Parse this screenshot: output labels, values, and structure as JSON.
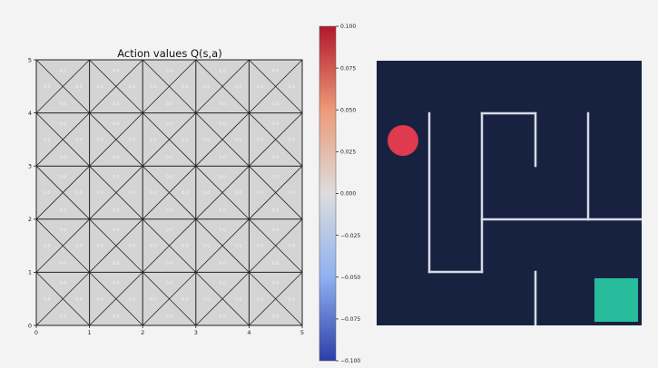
{
  "qplot": {
    "title": "Action values Q(s,a)",
    "grid_size": 5,
    "x_ticks": [
      "0",
      "1",
      "2",
      "3",
      "4",
      "5"
    ],
    "y_ticks": [
      "0",
      "1",
      "2",
      "3",
      "4",
      "5"
    ],
    "cell_value_text": "0.0",
    "cell_fill": "#d4d4d4",
    "line_color": "#222222"
  },
  "colorbar": {
    "ticks": [
      "0.100",
      "0.075",
      "0.050",
      "0.025",
      "0.000",
      "−0.025",
      "−0.050",
      "−0.075",
      "−0.100"
    ],
    "colormap_top": "#b2182b",
    "colormap_mid": "#dddddd",
    "colormap_bottom": "#2c3fa9"
  },
  "maze": {
    "background": "#172240",
    "wall_color": "#d7dbe6",
    "agent_color": "#df3a4d",
    "goal_color": "#26bc9c",
    "agent_icon": "red-circle",
    "goal_icon": "teal-square"
  }
}
